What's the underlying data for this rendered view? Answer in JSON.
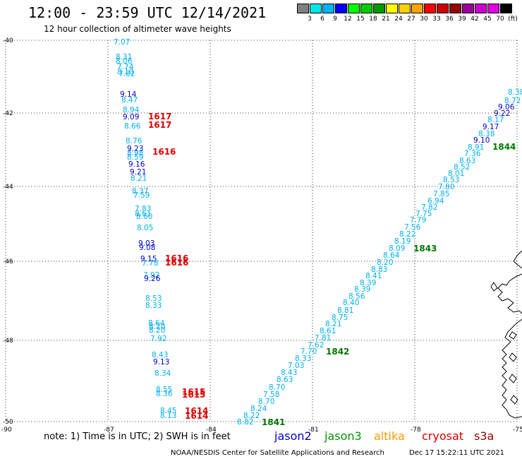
{
  "title": "12:00 - 23:59 UTC 12/14/2021",
  "subtitle": "12 hour collection of altimeter wave heights",
  "colorbar": {
    "colors": [
      "#808080",
      "#00e5e5",
      "#00b3ff",
      "#0000ff",
      "#00ff00",
      "#00cc00",
      "#009900",
      "#ffff00",
      "#ffd000",
      "#ffa500",
      "#ff0000",
      "#cc0000",
      "#990000",
      "#990099",
      "#cc00cc",
      "#e000e0",
      "#000000"
    ],
    "labels": [
      "3",
      "6",
      "9",
      "12",
      "15",
      "18",
      "21",
      "24",
      "27",
      "30",
      "33",
      "36",
      "39",
      "42",
      "45",
      "70",
      "(ft)"
    ]
  },
  "axes": {
    "lat_labels": [
      "-40",
      "-42",
      "-44",
      "-46",
      "-48",
      "-50"
    ],
    "lon_labels": [
      "-90",
      "-87",
      "-84",
      "-81",
      "-78",
      "-75"
    ]
  },
  "track_west": [
    {
      "v": "7.07",
      "c": "#00b0f0"
    },
    {
      "v": "8.31",
      "c": "#00b0f0"
    },
    {
      "v": "8.06",
      "c": "#00b0f0"
    },
    {
      "v": "7.74",
      "c": "#00b0f0"
    },
    {
      "v": "8.10",
      "c": "#00b0f0"
    },
    {
      "v": "7.82",
      "c": "#00b0f0"
    },
    {
      "v": "9.14",
      "c": "#0000cc"
    },
    {
      "v": "8.47",
      "c": "#00b0f0"
    },
    {
      "v": "8.94",
      "c": "#00b0f0"
    },
    {
      "v": "9.09",
      "c": "#0000cc"
    },
    {
      "v": "8.66",
      "c": "#00b0f0"
    },
    {
      "v": "8.76",
      "c": "#00b0f0"
    },
    {
      "v": "9.23",
      "c": "#0000cc"
    },
    {
      "v": "8.98",
      "c": "#00b0f0"
    },
    {
      "v": "8.59",
      "c": "#00b0f0"
    },
    {
      "v": "9.16",
      "c": "#0000cc"
    },
    {
      "v": "9.21",
      "c": "#0000cc"
    },
    {
      "v": "8.21",
      "c": "#00b0f0"
    },
    {
      "v": "8.37",
      "c": "#00b0f0"
    },
    {
      "v": "7.59",
      "c": "#00b0f0"
    },
    {
      "v": "7.83",
      "c": "#00b0f0"
    },
    {
      "v": "8.61",
      "c": "#00b0f0"
    },
    {
      "v": "8.60",
      "c": "#00b0f0"
    },
    {
      "v": "8.05",
      "c": "#00b0f0"
    },
    {
      "v": "9.03",
      "c": "#0000cc"
    },
    {
      "v": "9.08",
      "c": "#0000cc"
    },
    {
      "v": "9.15",
      "c": "#0000cc"
    },
    {
      "v": "7.78",
      "c": "#00b0f0"
    },
    {
      "v": "7.92",
      "c": "#00b0f0"
    },
    {
      "v": "9.26",
      "c": "#0000cc"
    },
    {
      "v": "8.53",
      "c": "#00b0f0"
    },
    {
      "v": "8.33",
      "c": "#00b0f0"
    },
    {
      "v": "8.64",
      "c": "#00b0f0"
    },
    {
      "v": "8.20",
      "c": "#00b0f0"
    },
    {
      "v": "8.20",
      "c": "#00b0f0"
    },
    {
      "v": "7.92",
      "c": "#00b0f0"
    },
    {
      "v": "8.43",
      "c": "#00b0f0"
    },
    {
      "v": "9.13",
      "c": "#0000cc"
    },
    {
      "v": "8.34",
      "c": "#00b0f0"
    },
    {
      "v": "8.55",
      "c": "#00b0f0"
    },
    {
      "v": "8.36",
      "c": "#00b0f0"
    },
    {
      "v": "8.45",
      "c": "#00b0f0"
    },
    {
      "v": "8.13",
      "c": "#00b0f0"
    }
  ],
  "track_east": [
    {
      "v": "8.82",
      "c": "#00b0f0"
    },
    {
      "v": "8.22",
      "c": "#00b0f0"
    },
    {
      "v": "8.24",
      "c": "#00b0f0"
    },
    {
      "v": "8.70",
      "c": "#00b0f0"
    },
    {
      "v": "7.58",
      "c": "#00b0f0"
    },
    {
      "v": "8.70",
      "c": "#00b0f0"
    },
    {
      "v": "8.63",
      "c": "#00b0f0"
    },
    {
      "v": "8.43",
      "c": "#00b0f0"
    },
    {
      "v": "7.03",
      "c": "#00b0f0"
    },
    {
      "v": "8.33",
      "c": "#00b0f0"
    },
    {
      "v": "7.70",
      "c": "#00b0f0"
    },
    {
      "v": "7.62",
      "c": "#00b0f0"
    },
    {
      "v": "7.81",
      "c": "#00b0f0"
    },
    {
      "v": "8.61",
      "c": "#00b0f0"
    },
    {
      "v": "8.21",
      "c": "#00b0f0"
    },
    {
      "v": "8.75",
      "c": "#00b0f0"
    },
    {
      "v": "8.81",
      "c": "#00b0f0"
    },
    {
      "v": "8.40",
      "c": "#00b0f0"
    },
    {
      "v": "8.56",
      "c": "#00b0f0"
    },
    {
      "v": "8.39",
      "c": "#00b0f0"
    },
    {
      "v": "8.39",
      "c": "#00b0f0"
    },
    {
      "v": "8.41",
      "c": "#00b0f0"
    },
    {
      "v": "8.83",
      "c": "#00b0f0"
    },
    {
      "v": "8.20",
      "c": "#00b0f0"
    },
    {
      "v": "8.64",
      "c": "#00b0f0"
    },
    {
      "v": "8.09",
      "c": "#00b0f0"
    },
    {
      "v": "8.19",
      "c": "#00b0f0"
    },
    {
      "v": "8.22",
      "c": "#00b0f0"
    },
    {
      "v": "7.56",
      "c": "#00b0f0"
    },
    {
      "v": "7.79",
      "c": "#00b0f0"
    },
    {
      "v": "7.75",
      "c": "#00b0f0"
    },
    {
      "v": "7.82",
      "c": "#00b0f0"
    },
    {
      "v": "6.94",
      "c": "#00b0f0"
    },
    {
      "v": "7.85",
      "c": "#00b0f0"
    },
    {
      "v": "7.80",
      "c": "#00b0f0"
    },
    {
      "v": "8.53",
      "c": "#00b0f0"
    },
    {
      "v": "8.01",
      "c": "#00b0f0"
    },
    {
      "v": "8.52",
      "c": "#00b0f0"
    },
    {
      "v": "8.63",
      "c": "#00b0f0"
    },
    {
      "v": "7.36",
      "c": "#00b0f0"
    },
    {
      "v": "8.91",
      "c": "#00b0f0"
    },
    {
      "v": "9.10",
      "c": "#0000cc"
    },
    {
      "v": "8.38",
      "c": "#00b0f0"
    },
    {
      "v": "9.17",
      "c": "#0000cc"
    },
    {
      "v": "8.17",
      "c": "#00b0f0"
    },
    {
      "v": "9.22",
      "c": "#0000cc"
    },
    {
      "v": "9.06",
      "c": "#0000cc"
    },
    {
      "v": "8.72",
      "c": "#00b0f0"
    },
    {
      "v": "8.38",
      "c": "#00b0f0"
    }
  ],
  "pass_labels": [
    {
      "t": "1617",
      "c": "#dd0000"
    },
    {
      "t": "1617",
      "c": "#dd0000"
    },
    {
      "t": "1616",
      "c": "#dd0000"
    },
    {
      "t": "1616",
      "c": "#dd0000"
    },
    {
      "t": "1616",
      "c": "#dd0000"
    },
    {
      "t": "1615",
      "c": "#dd0000"
    },
    {
      "t": "1615",
      "c": "#dd0000"
    },
    {
      "t": "1614",
      "c": "#dd0000"
    },
    {
      "t": "1614",
      "c": "#dd0000"
    },
    {
      "t": "1844",
      "c": "#007700"
    },
    {
      "t": "1843",
      "c": "#007700"
    },
    {
      "t": "1842",
      "c": "#007700"
    },
    {
      "t": "1841",
      "c": "#007700"
    }
  ],
  "note": "note: 1) Time is in UTC; 2) SWH is in feet",
  "satellites": [
    {
      "name": "jason2",
      "color": "#0000cc"
    },
    {
      "name": "jason3",
      "color": "#009900"
    },
    {
      "name": "altika",
      "color": "#ff9900"
    },
    {
      "name": "cryosat",
      "color": "#dd0000"
    },
    {
      "name": "s3a",
      "color": "#990000"
    }
  ],
  "footer_left": "NOAA/NESDIS Center for Satellite Applications and Research",
  "footer_right": "Dec 17 15:22:11 UTC 2021"
}
